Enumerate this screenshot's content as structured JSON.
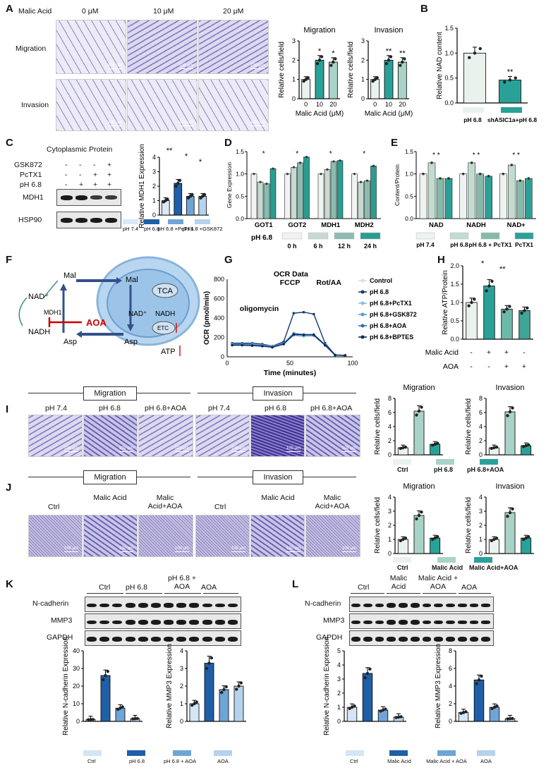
{
  "panels": {
    "A": "A",
    "B": "B",
    "C": "C",
    "D": "D",
    "E": "E",
    "F": "F",
    "G": "G",
    "H": "H",
    "I": "I",
    "J": "J",
    "K": "K",
    "L": "L"
  },
  "scale_bar": "100 μm",
  "A": {
    "treatment_label": "Malic Acid",
    "doses": [
      "0 μM",
      "10 μM",
      "20 μM"
    ],
    "rows": [
      "Migration",
      "Invasion"
    ],
    "chart_migration": {
      "title": "Migration",
      "ylabel": "Relative cells/field",
      "xlabel": "Malic Acid (μM)",
      "categories": [
        "0",
        "10",
        "20"
      ],
      "values": [
        1.0,
        2.0,
        1.9
      ],
      "ylim": [
        0,
        3
      ],
      "yticks": [
        "0",
        "1",
        "2",
        "3"
      ],
      "sig": [
        "",
        "*",
        "*"
      ],
      "colors": [
        "#eaf2ee",
        "#2aa198",
        "#a8d3c6"
      ]
    },
    "chart_invasion": {
      "title": "Invasion",
      "ylabel": "Relative cells/field",
      "xlabel": "Malic Acid (μM)",
      "categories": [
        "0",
        "10",
        "20"
      ],
      "values": [
        1.0,
        2.0,
        1.9
      ],
      "ylim": [
        0,
        3
      ],
      "yticks": [
        "0",
        "1",
        "2",
        "3"
      ],
      "sig": [
        "",
        "**",
        "**"
      ],
      "colors": [
        "#eaf2ee",
        "#2aa198",
        "#a8d3c6"
      ]
    }
  },
  "B": {
    "ylabel": "Relative NAD content",
    "categories": [
      "pH 6.8",
      "shASIC1a+pH 6.8"
    ],
    "values": [
      1.0,
      0.46
    ],
    "ylim": [
      0,
      1.5
    ],
    "yticks": [
      "0.0",
      "0.5",
      "1.0",
      "1.5"
    ],
    "sig": [
      "",
      "**"
    ],
    "colors": [
      "#eaf2ee",
      "#2aa198"
    ]
  },
  "C": {
    "header": "Cytoplasmic Protein",
    "treatments": [
      "GSK872",
      "PcTX1",
      "pH 6.8"
    ],
    "signs": [
      [
        "-",
        "-",
        "-",
        "+"
      ],
      [
        "-",
        "-",
        "+",
        "+"
      ],
      [
        "-",
        "+",
        "+",
        "+"
      ]
    ],
    "proteins": [
      "MDH1",
      "HSP90"
    ],
    "ylabel": "Relative MDH1 Expression",
    "yticks": [
      "0",
      "1",
      "2",
      "3",
      "4"
    ],
    "values": [
      1.0,
      2.2,
      1.3,
      1.3
    ],
    "legend": [
      "pH 7.4",
      "pH 6.8",
      "pH 6.8 +PcTX1",
      "pH 6.8 +GSK872"
    ],
    "colors": [
      "#dbe8f5",
      "#1f5fa8",
      "#6fa5d6",
      "#b6d2ec"
    ],
    "sig": [
      "**",
      "*",
      "*"
    ]
  },
  "D": {
    "ylabel": "Gene Expression",
    "yticks": [
      "0.0",
      "0.5",
      "1.0",
      "1.5"
    ],
    "categories": [
      "GOT1",
      "GOT2",
      "MDH1",
      "MDH2"
    ],
    "series_names": [
      "0 h",
      "6 h",
      "12 h",
      "24 h"
    ],
    "values": [
      [
        1.0,
        0.82,
        0.78,
        1.12
      ],
      [
        1.0,
        1.15,
        1.25,
        1.38
      ],
      [
        1.0,
        1.1,
        1.28,
        1.3
      ],
      [
        1.0,
        0.82,
        0.85,
        1.18
      ]
    ],
    "colors": [
      "#f0f3f2",
      "#c8d9d2",
      "#8cbcaf",
      "#2a9d8f"
    ],
    "legend_title": "pH 6.8"
  },
  "E": {
    "ylabel": "Content/Protein",
    "yticks": [
      "0.0",
      "0.5",
      "1.0",
      "1.5"
    ],
    "categories": [
      "NAD",
      "NADH",
      "NAD+"
    ],
    "values": [
      [
        1.0,
        1.25,
        0.9,
        0.9
      ],
      [
        1.0,
        1.25,
        1.0,
        0.95
      ],
      [
        1.0,
        1.2,
        0.85,
        0.9
      ]
    ],
    "legend": [
      "pH 7.4",
      "pH 6.8",
      "pH 6.8 + PcTX1",
      "PcTX1"
    ],
    "colors": [
      "#eef2f0",
      "#c3dccf",
      "#86b9a9",
      "#2aa198"
    ]
  },
  "F": {
    "labels": {
      "mal_out": "Mal",
      "asp_out": "Asp",
      "nad_plus": "NAD⁺",
      "nadh": "NADH",
      "mdh1": "MDH1",
      "aoa": "AOA",
      "mal_in": "Mal",
      "tca": "TCA",
      "nad_in": "NAD⁺",
      "nadh_in": "NADH",
      "etc": "ETC",
      "asp_in": "Asp",
      "atp": "ATP"
    }
  },
  "G": {
    "ylabel": "OCR (pmol/min)",
    "xlabel": "Time (minutes)",
    "xticks": [
      "0",
      "50",
      "100"
    ],
    "yticks": [
      "0",
      "200",
      "400",
      "600",
      "800"
    ],
    "annotations": [
      "oligomycin",
      "OCR Data",
      "FCCP",
      "Rot/AA"
    ],
    "legend": [
      "Control",
      "pH 6.8",
      "pH 6.8+PcTX1",
      "pH 6.8+GSK872",
      "pH 6.8+AOA",
      "pH 6.8+BPTES"
    ],
    "colors": [
      "#cfe0f1",
      "#13396e",
      "#8fbde3",
      "#5a9ad0",
      "#2f6fb2",
      "#0b2a57"
    ],
    "x": [
      4,
      12,
      20,
      28,
      36,
      45,
      53,
      61,
      69,
      78,
      86,
      94
    ],
    "series": [
      [
        140,
        140,
        140,
        130,
        110,
        150,
        250,
        220,
        230,
        130,
        20,
        15
      ],
      [
        140,
        140,
        140,
        130,
        110,
        155,
        450,
        460,
        440,
        140,
        20,
        15
      ],
      [
        130,
        130,
        130,
        120,
        105,
        140,
        220,
        210,
        215,
        120,
        20,
        15
      ],
      [
        130,
        130,
        125,
        118,
        100,
        140,
        230,
        225,
        230,
        125,
        18,
        14
      ],
      [
        120,
        120,
        120,
        110,
        100,
        135,
        240,
        230,
        230,
        120,
        18,
        14
      ],
      [
        120,
        120,
        115,
        110,
        98,
        130,
        230,
        225,
        225,
        118,
        18,
        14
      ]
    ]
  },
  "H": {
    "ylabel": "Relative ATP/Protein",
    "yticks": [
      "0.0",
      "0.5",
      "1.0",
      "1.5",
      "2.0"
    ],
    "values": [
      1.0,
      1.45,
      0.82,
      0.78
    ],
    "colors": [
      "#eaf2ee",
      "#2aa198",
      "#6db9a9",
      "#3fa597"
    ],
    "rowlabels": [
      "Malic Acid",
      "AOA"
    ],
    "signs": [
      [
        "-",
        "+",
        "+",
        "-"
      ],
      [
        "-",
        "-",
        "+",
        "+"
      ]
    ],
    "sig": [
      "*",
      "**"
    ]
  },
  "I": {
    "groups": [
      "Migration",
      "Invasion"
    ],
    "conds": [
      "pH 7.4",
      "pH 6.8",
      "pH 6.8+AOA",
      "pH 7.4",
      "pH 6.8",
      "pH 6.8+AOA"
    ],
    "chart_migration": {
      "title": "Migration",
      "ylabel": "Relative cells/field",
      "values": [
        1.0,
        6.2,
        1.5
      ],
      "ylim": [
        0,
        8
      ],
      "yticks": [
        "0",
        "2",
        "4",
        "6",
        "8"
      ],
      "colors": [
        "#eaf2ee",
        "#a8d3c6",
        "#2aa198"
      ]
    },
    "chart_invasion": {
      "title": "Invasion",
      "ylabel": "Relative cells/field",
      "values": [
        1.0,
        6.1,
        1.3
      ],
      "ylim": [
        0,
        8
      ],
      "yticks": [
        "0",
        "2",
        "4",
        "6",
        "8"
      ],
      "colors": [
        "#eaf2ee",
        "#a8d3c6",
        "#2aa198"
      ]
    },
    "legend": [
      "Ctrl",
      "pH 6.8",
      "pH 6.8+AOA"
    ]
  },
  "J": {
    "groups": [
      "Migration",
      "Invasion"
    ],
    "conds": [
      "Ctrl",
      "Malic Acid",
      "Malic Acid+AOA",
      "Ctrl",
      "Malic Acid",
      "Malic Acid+AOA"
    ],
    "chart_migration": {
      "title": "Migration",
      "ylabel": "Relative cells/field",
      "values": [
        1.0,
        2.7,
        1.1
      ],
      "ylim": [
        0,
        4
      ],
      "yticks": [
        "0",
        "1",
        "2",
        "3",
        "4"
      ],
      "colors": [
        "#eaf2ee",
        "#a8d3c6",
        "#2aa198"
      ]
    },
    "chart_invasion": {
      "title": "Invasion",
      "ylabel": "Relative cells/field",
      "values": [
        1.0,
        2.9,
        1.1
      ],
      "ylim": [
        0,
        4
      ],
      "yticks": [
        "0",
        "1",
        "2",
        "3",
        "4"
      ],
      "colors": [
        "#eaf2ee",
        "#a8d3c6",
        "#2aa198"
      ]
    },
    "legend": [
      "Ctrl",
      "Malic Acid",
      "Malic Acid+AOA"
    ]
  },
  "K": {
    "groups": [
      "Ctrl",
      "pH 6.8",
      "pH 6.8 + AOA",
      "AOA"
    ],
    "proteins": [
      "N-cadherin",
      "MMP3",
      "GAPDH"
    ],
    "chart_ncad": {
      "ylabel": "Relative N-cadherin Expression",
      "values": [
        1.0,
        26,
        7.5,
        1.5
      ],
      "ylim": [
        0,
        40
      ],
      "yticks": [
        "0",
        "10",
        "20",
        "30",
        "40"
      ]
    },
    "chart_mmp3": {
      "ylabel": "Relative MMP3 Expression",
      "values": [
        1.0,
        3.3,
        1.8,
        2.0
      ],
      "ylim": [
        0,
        4
      ],
      "yticks": [
        "0",
        "1",
        "2",
        "3",
        "4"
      ]
    },
    "legend": [
      "Ctrl",
      "pH 6.8",
      "pH 6.8 + AOA",
      "AOA"
    ],
    "colors": [
      "#d4e5f5",
      "#1f5fa8",
      "#6fa5d6",
      "#b6d2ec"
    ]
  },
  "L": {
    "groups": [
      "Ctrl",
      "Malic Acid",
      "Malic Acid + AOA",
      "AOA"
    ],
    "proteins": [
      "N-cadherin",
      "MMP3",
      "GAPDH"
    ],
    "chart_ncad": {
      "ylabel": "Relative  N-cadherin Expression",
      "values": [
        1.0,
        3.4,
        0.8,
        0.3
      ],
      "ylim": [
        0,
        5
      ],
      "yticks": [
        "0",
        "1",
        "2",
        "3",
        "4",
        "5"
      ]
    },
    "chart_mmp3": {
      "ylabel": "Relative MMP3 Expression",
      "values": [
        1.0,
        4.7,
        1.6,
        0.3
      ],
      "ylim": [
        0,
        8
      ],
      "yticks": [
        "0",
        "2",
        "4",
        "6",
        "8"
      ]
    },
    "legend": [
      "Ctrl",
      "Malic Acid",
      "Malic Acid + AOA",
      "AOA"
    ],
    "colors": [
      "#d4e5f5",
      "#1f5fa8",
      "#6fa5d6",
      "#b6d2ec"
    ]
  }
}
